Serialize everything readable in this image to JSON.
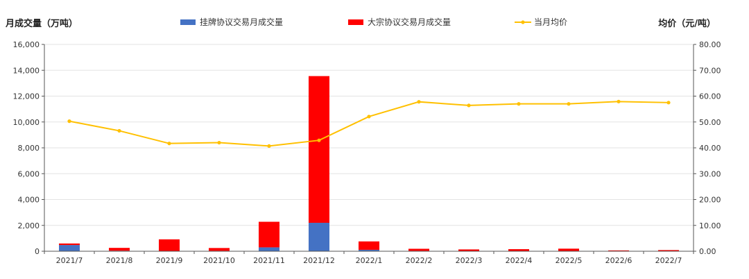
{
  "chart_data": {
    "type": "bar",
    "stacked": true,
    "categories": [
      "2021/7",
      "2021/8",
      "2021/9",
      "2021/10",
      "2021/11",
      "2021/12",
      "2022/1",
      "2022/2",
      "2022/3",
      "2022/4",
      "2022/5",
      "2022/6",
      "2022/7"
    ],
    "series": [
      {
        "name": "挂牌协议交易月成交量",
        "type": "bar",
        "axis": "left",
        "color": "#4472C4",
        "values": [
          480,
          40,
          20,
          30,
          300,
          2200,
          110,
          30,
          20,
          20,
          20,
          5,
          10
        ]
      },
      {
        "name": "大宗协议交易月成交量",
        "type": "bar",
        "axis": "left",
        "color": "#FF0000",
        "values": [
          120,
          220,
          900,
          220,
          1980,
          11350,
          650,
          160,
          120,
          140,
          180,
          60,
          80
        ]
      },
      {
        "name": "当月均价",
        "type": "line",
        "axis": "right",
        "color": "#FFC000",
        "values": [
          50.3,
          46.6,
          41.7,
          42.0,
          40.7,
          42.9,
          52.1,
          57.8,
          56.4,
          57.0,
          57.0,
          57.9,
          57.5
        ]
      }
    ],
    "y_left": {
      "label": "月成交量（万吨）",
      "min": 0,
      "max": 16000,
      "ticks": [
        "0",
        "2,000",
        "4,000",
        "6,000",
        "8,000",
        "10,000",
        "12,000",
        "14,000",
        "16,000"
      ]
    },
    "y_right": {
      "label": "均价（元/吨）",
      "min": 0,
      "max": 80,
      "ticks": [
        "0.00",
        "10.00",
        "20.00",
        "30.00",
        "40.00",
        "50.00",
        "60.00",
        "70.00",
        "80.00"
      ]
    },
    "grid": true,
    "legend_position": "top"
  }
}
